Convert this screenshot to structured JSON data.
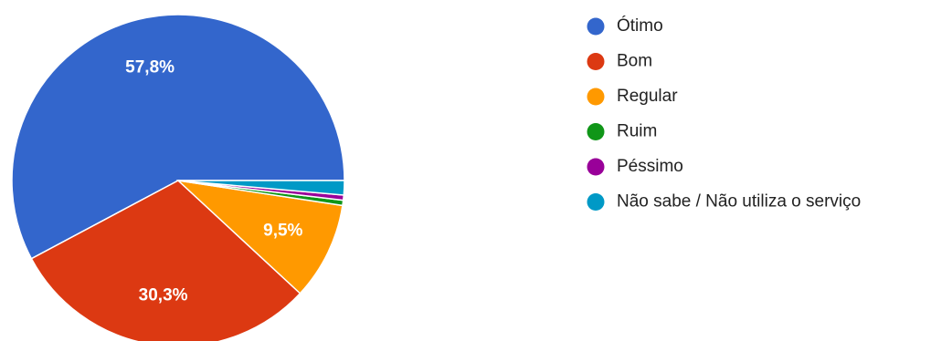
{
  "chart_data": {
    "type": "pie",
    "legend_position": "right",
    "categories": [
      "Ótimo",
      "Bom",
      "Regular",
      "Ruim",
      "Péssimo",
      "Não sabe / Não utiliza o serviço"
    ],
    "values": [
      57.8,
      30.3,
      9.5,
      0.5,
      0.5,
      1.4
    ],
    "colors": [
      "#3366cc",
      "#dc3912",
      "#ff9900",
      "#109618",
      "#990099",
      "#0099c6"
    ],
    "data_labels": [
      "57,8%",
      "30,3%",
      "9,5%",
      "",
      "",
      ""
    ]
  }
}
